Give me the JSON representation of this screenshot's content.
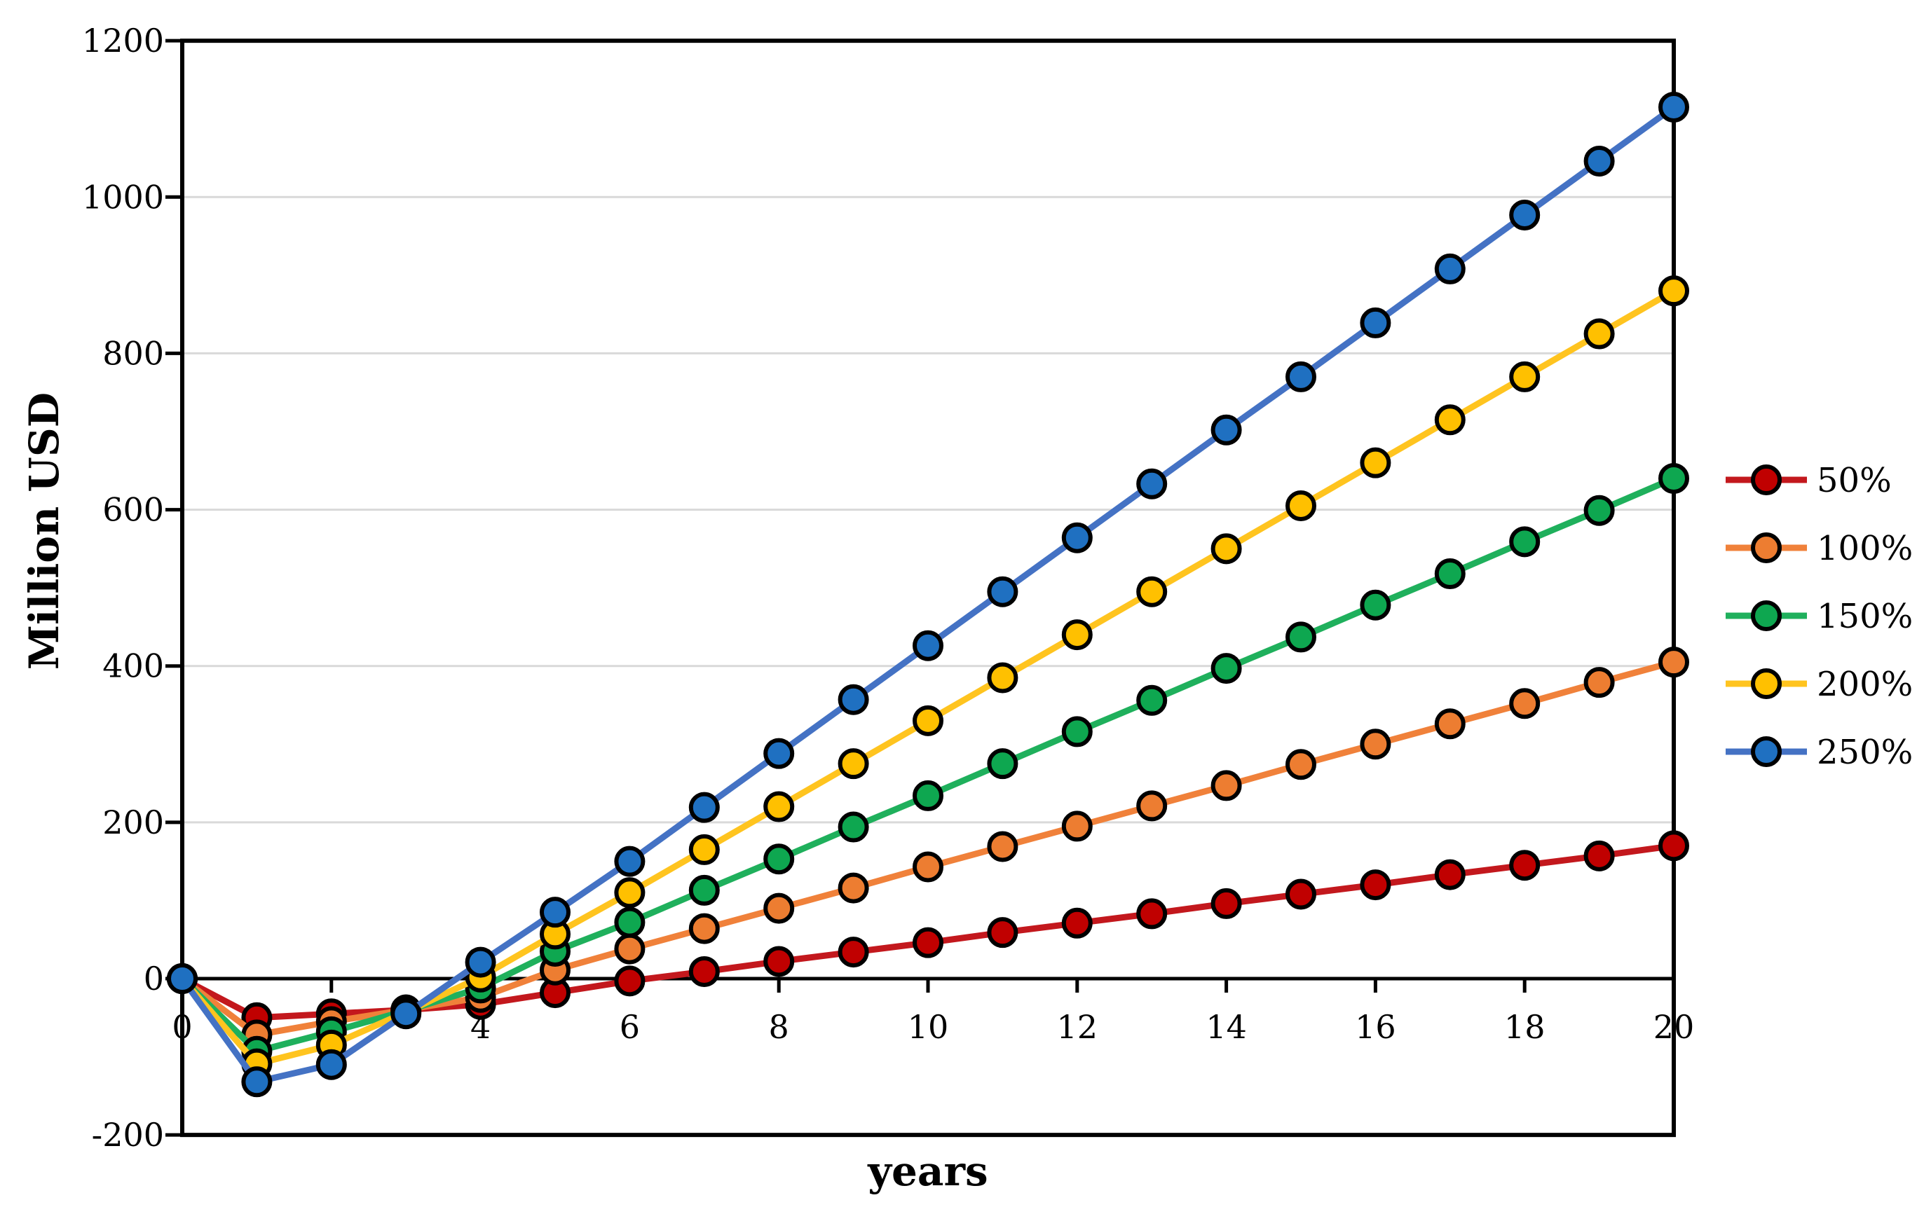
{
  "chart_data": {
    "type": "line",
    "title": "",
    "xlabel": "years",
    "ylabel": "Million USD",
    "xlim": [
      0,
      20
    ],
    "ylim": [
      -200,
      1200
    ],
    "x_ticks": [
      0,
      2,
      4,
      6,
      8,
      10,
      12,
      14,
      16,
      18,
      20
    ],
    "y_ticks": [
      -200,
      0,
      200,
      400,
      600,
      800,
      1000,
      1200
    ],
    "grid": "horizontal gridlines at 200..1000",
    "grid_color": "#D9D9D9",
    "axis_color": "#000000",
    "background": "#FFFFFF",
    "legend_position": "right",
    "marker_outline": "#000000",
    "x": [
      0,
      1,
      2,
      3,
      4,
      5,
      6,
      7,
      8,
      9,
      10,
      11,
      12,
      13,
      14,
      15,
      16,
      17,
      18,
      19,
      20
    ],
    "series": [
      {
        "name": "50%",
        "line_color": "#C3181D",
        "marker_color": "#C00000",
        "values": [
          0,
          -50,
          -45,
          -40,
          -33,
          -18,
          -3,
          9,
          22,
          34,
          46,
          59,
          71,
          83,
          96,
          108,
          120,
          133,
          145,
          157,
          170
        ]
      },
      {
        "name": "100%",
        "line_color": "#F0813A",
        "marker_color": "#ED7D31",
        "values": [
          0,
          -72,
          -55,
          -40,
          -24,
          11,
          38,
          64,
          90,
          116,
          143,
          169,
          195,
          221,
          247,
          274,
          300,
          326,
          352,
          379,
          405
        ]
      },
      {
        "name": "150%",
        "line_color": "#1FB05C",
        "marker_color": "#0EA750",
        "values": [
          0,
          -93,
          -68,
          -41,
          -12,
          35,
          72,
          113,
          153,
          194,
          234,
          275,
          316,
          356,
          397,
          437,
          478,
          518,
          559,
          599,
          640
        ]
      },
      {
        "name": "200%",
        "line_color": "#FFC41F",
        "marker_color": "#FFC000",
        "values": [
          0,
          -109,
          -85,
          -43,
          2,
          57,
          110,
          165,
          220,
          275,
          330,
          385,
          440,
          495,
          550,
          605,
          660,
          715,
          770,
          825,
          880
        ]
      },
      {
        "name": "250%",
        "line_color": "#4472C4",
        "marker_color": "#1F70C1",
        "values": [
          0,
          -132,
          -110,
          -45,
          21,
          85,
          150,
          219,
          288,
          357,
          426,
          495,
          564,
          633,
          702,
          770,
          839,
          908,
          977,
          1046,
          1115
        ]
      }
    ]
  }
}
